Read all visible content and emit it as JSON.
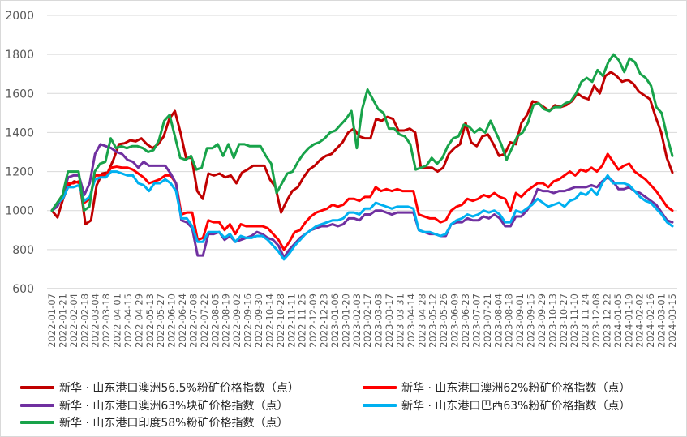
{
  "chart_data": {
    "type": "line",
    "title": "",
    "xlabel": "",
    "ylabel": "",
    "ylim": [
      600,
      2000
    ],
    "yticks": [
      600,
      800,
      1000,
      1200,
      1400,
      1600,
      1800,
      2000
    ],
    "grid": true,
    "legend_placement": "bottom",
    "tick_labels": [
      "2022-01-07",
      "2022-01-21",
      "2022-02-04",
      "2022-02-18",
      "2022-03-04",
      "2022-03-18",
      "2022-04-01",
      "2022-04-15",
      "2022-04-29",
      "2022-05-13",
      "2022-05-27",
      "2022-06-10",
      "2022-06-24",
      "2022-07-08",
      "2022-07-22",
      "2022-08-05",
      "2022-08-19",
      "2022-09-02",
      "2022-09-16",
      "2022-09-30",
      "2022-10-14",
      "2022-10-28",
      "2022-11-11",
      "2022-11-25",
      "2022-12-09",
      "2022-12-23",
      "2023-01-06",
      "2023-01-20",
      "2023-02-03",
      "2023-02-17",
      "2023-03-03",
      "2023-03-17",
      "2023-03-31",
      "2023-04-14",
      "2023-04-28",
      "2023-05-12",
      "2023-05-26",
      "2023-06-09",
      "2023-06-23",
      "2023-07-07",
      "2023-07-21",
      "2023-08-04",
      "2023-08-18",
      "2023-09-01",
      "2023-09-15",
      "2023-09-29",
      "2023-10-13",
      "2023-10-27",
      "2023-11-10",
      "2023-11-24",
      "2023-12-08",
      "2023-12-22",
      "2024-01-05",
      "2024-01-19",
      "2024-02-02",
      "2024-02-16",
      "2024-03-01",
      "2024-03-15"
    ],
    "x_start": "2022-01-07",
    "x_end": "2024-03-15",
    "series": [
      {
        "name": "新华 · 山东港口澳洲56.5%粉矿价格指数（点）",
        "color": "#c00000",
        "values": [
          1000,
          965,
          1060,
          1130,
          1150,
          1140,
          930,
          950,
          1130,
          1190,
          1195,
          1260,
          1340,
          1345,
          1360,
          1355,
          1370,
          1340,
          1320,
          1340,
          1380,
          1470,
          1510,
          1400,
          1270,
          1270,
          1100,
          1060,
          1190,
          1180,
          1190,
          1170,
          1180,
          1140,
          1195,
          1210,
          1230,
          1230,
          1230,
          1160,
          1120,
          990,
          1050,
          1100,
          1120,
          1170,
          1210,
          1230,
          1260,
          1280,
          1290,
          1320,
          1350,
          1400,
          1420,
          1380,
          1370,
          1370,
          1470,
          1460,
          1480,
          1470,
          1410,
          1410,
          1420,
          1400,
          1220,
          1220,
          1220,
          1200,
          1220,
          1290,
          1320,
          1340,
          1450,
          1350,
          1330,
          1380,
          1390,
          1340,
          1280,
          1290,
          1350,
          1340,
          1450,
          1490,
          1560,
          1550,
          1530,
          1510,
          1540,
          1530,
          1540,
          1560,
          1600,
          1580,
          1570,
          1640,
          1600,
          1690,
          1710,
          1690,
          1660,
          1670,
          1650,
          1610,
          1590,
          1570,
          1480,
          1400,
          1270,
          1195
        ]
      },
      {
        "name": "新华 · 山东港口澳洲62%粉矿价格指数（点）",
        "color": "#ff0000",
        "values": [
          1000,
          1040,
          1080,
          1140,
          1140,
          1150,
          1040,
          1060,
          1180,
          1180,
          1180,
          1220,
          1225,
          1220,
          1220,
          1210,
          1190,
          1170,
          1140,
          1150,
          1160,
          1180,
          1180,
          1140,
          980,
          990,
          990,
          850,
          860,
          950,
          940,
          940,
          900,
          930,
          880,
          930,
          920,
          920,
          920,
          920,
          910,
          880,
          850,
          800,
          840,
          890,
          900,
          940,
          970,
          990,
          1000,
          1010,
          1030,
          1020,
          1030,
          1060,
          1060,
          1050,
          1070,
          1070,
          1120,
          1100,
          1110,
          1100,
          1110,
          1100,
          1100,
          1100,
          980,
          970,
          960,
          960,
          940,
          950,
          1000,
          1020,
          1030,
          1060,
          1050,
          1060,
          1080,
          1070,
          1090,
          1070,
          1060,
          1000,
          1090,
          1070,
          1100,
          1120,
          1140,
          1140,
          1120,
          1150,
          1160,
          1180,
          1200,
          1180,
          1210,
          1200,
          1220,
          1200,
          1230,
          1290,
          1250,
          1210,
          1230,
          1240,
          1200,
          1180,
          1160,
          1130,
          1100,
          1060,
          1020,
          1000
        ]
      },
      {
        "name": "新华 · 山东港口澳洲63%块矿价格指数（点）",
        "color": "#7030a0",
        "values": [
          1000,
          1020,
          1080,
          1170,
          1180,
          1180,
          1080,
          1140,
          1290,
          1340,
          1330,
          1320,
          1300,
          1290,
          1260,
          1250,
          1220,
          1250,
          1230,
          1230,
          1230,
          1230,
          1190,
          1140,
          950,
          940,
          910,
          770,
          770,
          880,
          880,
          890,
          850,
          870,
          840,
          850,
          860,
          870,
          890,
          880,
          860,
          850,
          820,
          760,
          800,
          830,
          860,
          880,
          900,
          910,
          920,
          920,
          930,
          920,
          930,
          960,
          960,
          950,
          980,
          980,
          1000,
          1000,
          990,
          980,
          990,
          990,
          990,
          990,
          900,
          890,
          880,
          880,
          870,
          870,
          930,
          940,
          940,
          960,
          950,
          950,
          970,
          960,
          980,
          960,
          920,
          920,
          970,
          970,
          1000,
          1040,
          1110,
          1100,
          1100,
          1090,
          1100,
          1100,
          1110,
          1120,
          1120,
          1120,
          1130,
          1120,
          1150,
          1170,
          1150,
          1110,
          1110,
          1120,
          1100,
          1090,
          1070,
          1050,
          1030,
          990,
          950,
          940
        ]
      },
      {
        "name": "新华 · 山东港口巴西63%粉矿价格指数（点）",
        "color": "#00b0f0",
        "values": [
          1000,
          1040,
          1060,
          1120,
          1120,
          1130,
          1050,
          1070,
          1160,
          1170,
          1170,
          1200,
          1200,
          1190,
          1180,
          1180,
          1140,
          1130,
          1100,
          1140,
          1140,
          1160,
          1140,
          1100,
          960,
          960,
          920,
          840,
          840,
          890,
          890,
          890,
          860,
          880,
          840,
          870,
          860,
          860,
          870,
          870,
          850,
          820,
          790,
          750,
          780,
          820,
          850,
          880,
          900,
          920,
          930,
          940,
          950,
          950,
          960,
          990,
          990,
          980,
          1010,
          1010,
          1040,
          1030,
          1020,
          1010,
          1020,
          1020,
          1020,
          1010,
          900,
          890,
          890,
          880,
          870,
          880,
          930,
          950,
          960,
          980,
          970,
          980,
          1000,
          990,
          1000,
          980,
          940,
          940,
          1000,
          990,
          1010,
          1030,
          1060,
          1040,
          1020,
          1030,
          1040,
          1020,
          1050,
          1060,
          1090,
          1080,
          1110,
          1080,
          1140,
          1180,
          1140,
          1140,
          1140,
          1130,
          1100,
          1070,
          1050,
          1040,
          1010,
          980,
          940,
          920
        ]
      },
      {
        "name": "新华 · 山东港口印度58%粉矿价格指数（点）",
        "color": "#18a34a",
        "values": [
          1000,
          1040,
          1080,
          1200,
          1200,
          1200,
          1000,
          1020,
          1200,
          1240,
          1250,
          1370,
          1320,
          1330,
          1320,
          1330,
          1330,
          1320,
          1300,
          1310,
          1360,
          1460,
          1490,
          1380,
          1270,
          1260,
          1280,
          1210,
          1220,
          1320,
          1320,
          1340,
          1280,
          1340,
          1270,
          1340,
          1340,
          1330,
          1330,
          1330,
          1280,
          1240,
          1090,
          1140,
          1190,
          1200,
          1250,
          1290,
          1320,
          1340,
          1350,
          1370,
          1400,
          1410,
          1440,
          1470,
          1510,
          1320,
          1520,
          1620,
          1570,
          1520,
          1500,
          1420,
          1420,
          1390,
          1380,
          1340,
          1210,
          1220,
          1230,
          1270,
          1240,
          1270,
          1330,
          1370,
          1380,
          1440,
          1430,
          1400,
          1420,
          1400,
          1460,
          1400,
          1340,
          1260,
          1320,
          1380,
          1400,
          1450,
          1540,
          1550,
          1520,
          1510,
          1530,
          1530,
          1550,
          1560,
          1600,
          1660,
          1680,
          1660,
          1720,
          1690,
          1760,
          1800,
          1770,
          1710,
          1780,
          1760,
          1700,
          1680,
          1640,
          1530,
          1500,
          1380,
          1280
        ]
      }
    ]
  }
}
